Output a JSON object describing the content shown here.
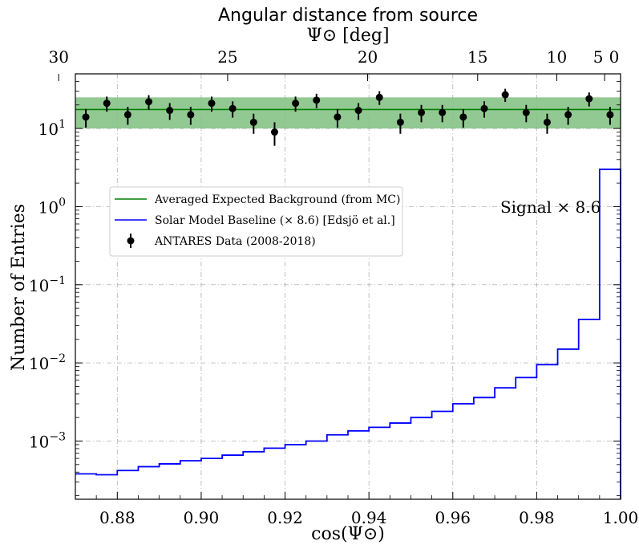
{
  "chart_data": {
    "type": "line",
    "title": "",
    "top_axis": {
      "label_line1": "Angular distance from source",
      "label_line2": "Ψ⊙ [deg]",
      "ticks": [
        {
          "deg": 30,
          "label": "30"
        },
        {
          "deg": 25,
          "label": "25"
        },
        {
          "deg": 20,
          "label": "20"
        },
        {
          "deg": 15,
          "label": "15"
        },
        {
          "deg": 10,
          "label": "10"
        },
        {
          "deg": 5,
          "label": "5"
        },
        {
          "deg": 0,
          "label": "0"
        }
      ]
    },
    "xlabel": "cos(Ψ⊙)",
    "ylabel": "Number of Entries",
    "xlim": [
      0.87,
      1.0
    ],
    "ylim": [
      0.00018,
      50
    ],
    "yscale": "log",
    "grid": true,
    "xticks": [
      {
        "value": 0.88,
        "label": "0.88"
      },
      {
        "value": 0.9,
        "label": "0.90"
      },
      {
        "value": 0.92,
        "label": "0.92"
      },
      {
        "value": 0.94,
        "label": "0.94"
      },
      {
        "value": 0.96,
        "label": "0.96"
      },
      {
        "value": 0.98,
        "label": "0.98"
      },
      {
        "value": 1.0,
        "label": "1.00"
      }
    ],
    "yticks": [
      {
        "value": 0.001,
        "base": "10",
        "exp": "−3"
      },
      {
        "value": 0.01,
        "base": "10",
        "exp": "−2"
      },
      {
        "value": 0.1,
        "base": "10",
        "exp": "−1"
      },
      {
        "value": 1,
        "base": "10",
        "exp": "0"
      },
      {
        "value": 10,
        "base": "10",
        "exp": "1"
      }
    ],
    "legend": {
      "placement": "center-left",
      "entries": [
        {
          "label": "Averaged Expected Background (from MC)",
          "kind": "line",
          "color": "#008000"
        },
        {
          "label": "Solar Model Baseline (× 8.6) [Edsjö et al.]",
          "kind": "line",
          "color": "#0000ff"
        },
        {
          "label": "ANTARES Data (2008-2018)",
          "kind": "errorbar",
          "color": "#000000"
        }
      ]
    },
    "annotation": {
      "text": "Signal × 8.6",
      "color": "#0000ff",
      "x": 0.9833,
      "y": 0.8
    },
    "background": {
      "mean": 17.5,
      "band_low": 10,
      "band_high": 25,
      "color": "#008000",
      "band_color": "#7fbf7f"
    },
    "signal_steps": {
      "color": "#0000ff",
      "edges": [
        0.87,
        0.875,
        0.88,
        0.885,
        0.89,
        0.895,
        0.9,
        0.905,
        0.91,
        0.915,
        0.92,
        0.925,
        0.93,
        0.935,
        0.94,
        0.945,
        0.95,
        0.955,
        0.96,
        0.965,
        0.97,
        0.975,
        0.98,
        0.985,
        0.99,
        0.995,
        1.0
      ],
      "values": [
        0.00038,
        0.00037,
        0.00042,
        0.00047,
        0.00051,
        0.00056,
        0.0006,
        0.00066,
        0.00073,
        0.00081,
        0.0009,
        0.001,
        0.0012,
        0.00135,
        0.0015,
        0.0017,
        0.002,
        0.0024,
        0.003,
        0.0036,
        0.0048,
        0.0065,
        0.0095,
        0.015,
        0.036,
        3.0
      ]
    },
    "data_points": {
      "name": "ANTARES Data (2008-2018)",
      "x": [
        0.8725,
        0.8775,
        0.8825,
        0.8875,
        0.8925,
        0.8975,
        0.9025,
        0.9075,
        0.9125,
        0.9175,
        0.9225,
        0.9275,
        0.9325,
        0.9375,
        0.9425,
        0.9475,
        0.9525,
        0.9575,
        0.9625,
        0.9675,
        0.9725,
        0.9775,
        0.9825,
        0.9875,
        0.9925,
        0.9975
      ],
      "y": [
        14,
        21,
        15,
        22,
        17,
        15,
        21,
        18,
        12,
        9,
        21,
        23,
        14,
        17,
        25,
        12,
        16,
        16,
        14,
        18,
        27,
        16,
        12,
        15,
        24,
        15
      ]
    }
  }
}
